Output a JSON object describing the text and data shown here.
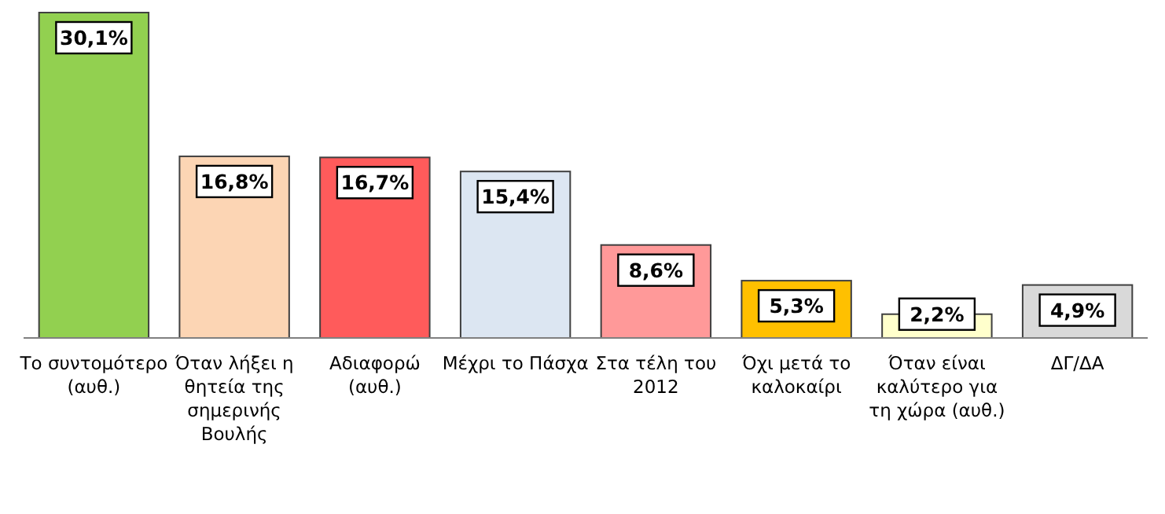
{
  "chart_data": {
    "type": "bar",
    "categories": [
      "Το συντομότερο (αυθ.)",
      "Όταν λήξει η θητεία της σημερινής Βουλής",
      "Αδιαφορώ (αυθ.)",
      "Μέχρι το Πάσχα",
      "Στα τέλη του 2012",
      "Όχι μετά το καλοκαίρι",
      "Όταν είναι καλύτερο για τη χώρα (αυθ.)",
      "ΔΓ/ΔΑ"
    ],
    "values": [
      30.1,
      16.8,
      16.7,
      15.4,
      8.6,
      5.3,
      2.2,
      4.9
    ],
    "value_labels": [
      "30,1%",
      "16,8%",
      "16,7%",
      "15,4%",
      "8,6%",
      "5,3%",
      "2,2%",
      "4,9%"
    ],
    "colors": [
      "#92d050",
      "#fcd5b4",
      "#ff5b5b",
      "#dce6f2",
      "#ff9999",
      "#ffc000",
      "#ffffcc",
      "#d9d9d9"
    ]
  }
}
